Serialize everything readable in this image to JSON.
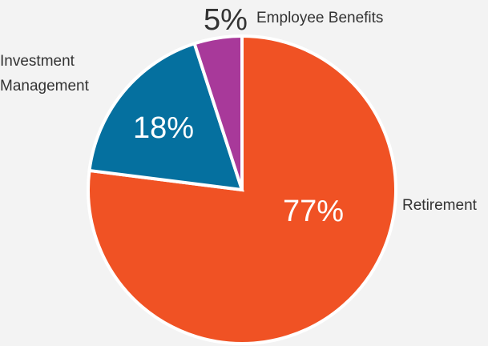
{
  "chart_data": {
    "type": "pie",
    "categories": [
      "Retirement",
      "Investment Management",
      "Employee Benefits"
    ],
    "values": [
      77,
      18,
      5
    ],
    "value_labels": [
      "77%",
      "18%",
      "5%"
    ],
    "colors": [
      "#f05224",
      "#05709f",
      "#a8399a"
    ],
    "legend": "none",
    "labels": {
      "retirement": "Retirement",
      "investment_line1": "Investment",
      "investment_line2": "Management",
      "benefits": "Employee Benefits"
    }
  }
}
